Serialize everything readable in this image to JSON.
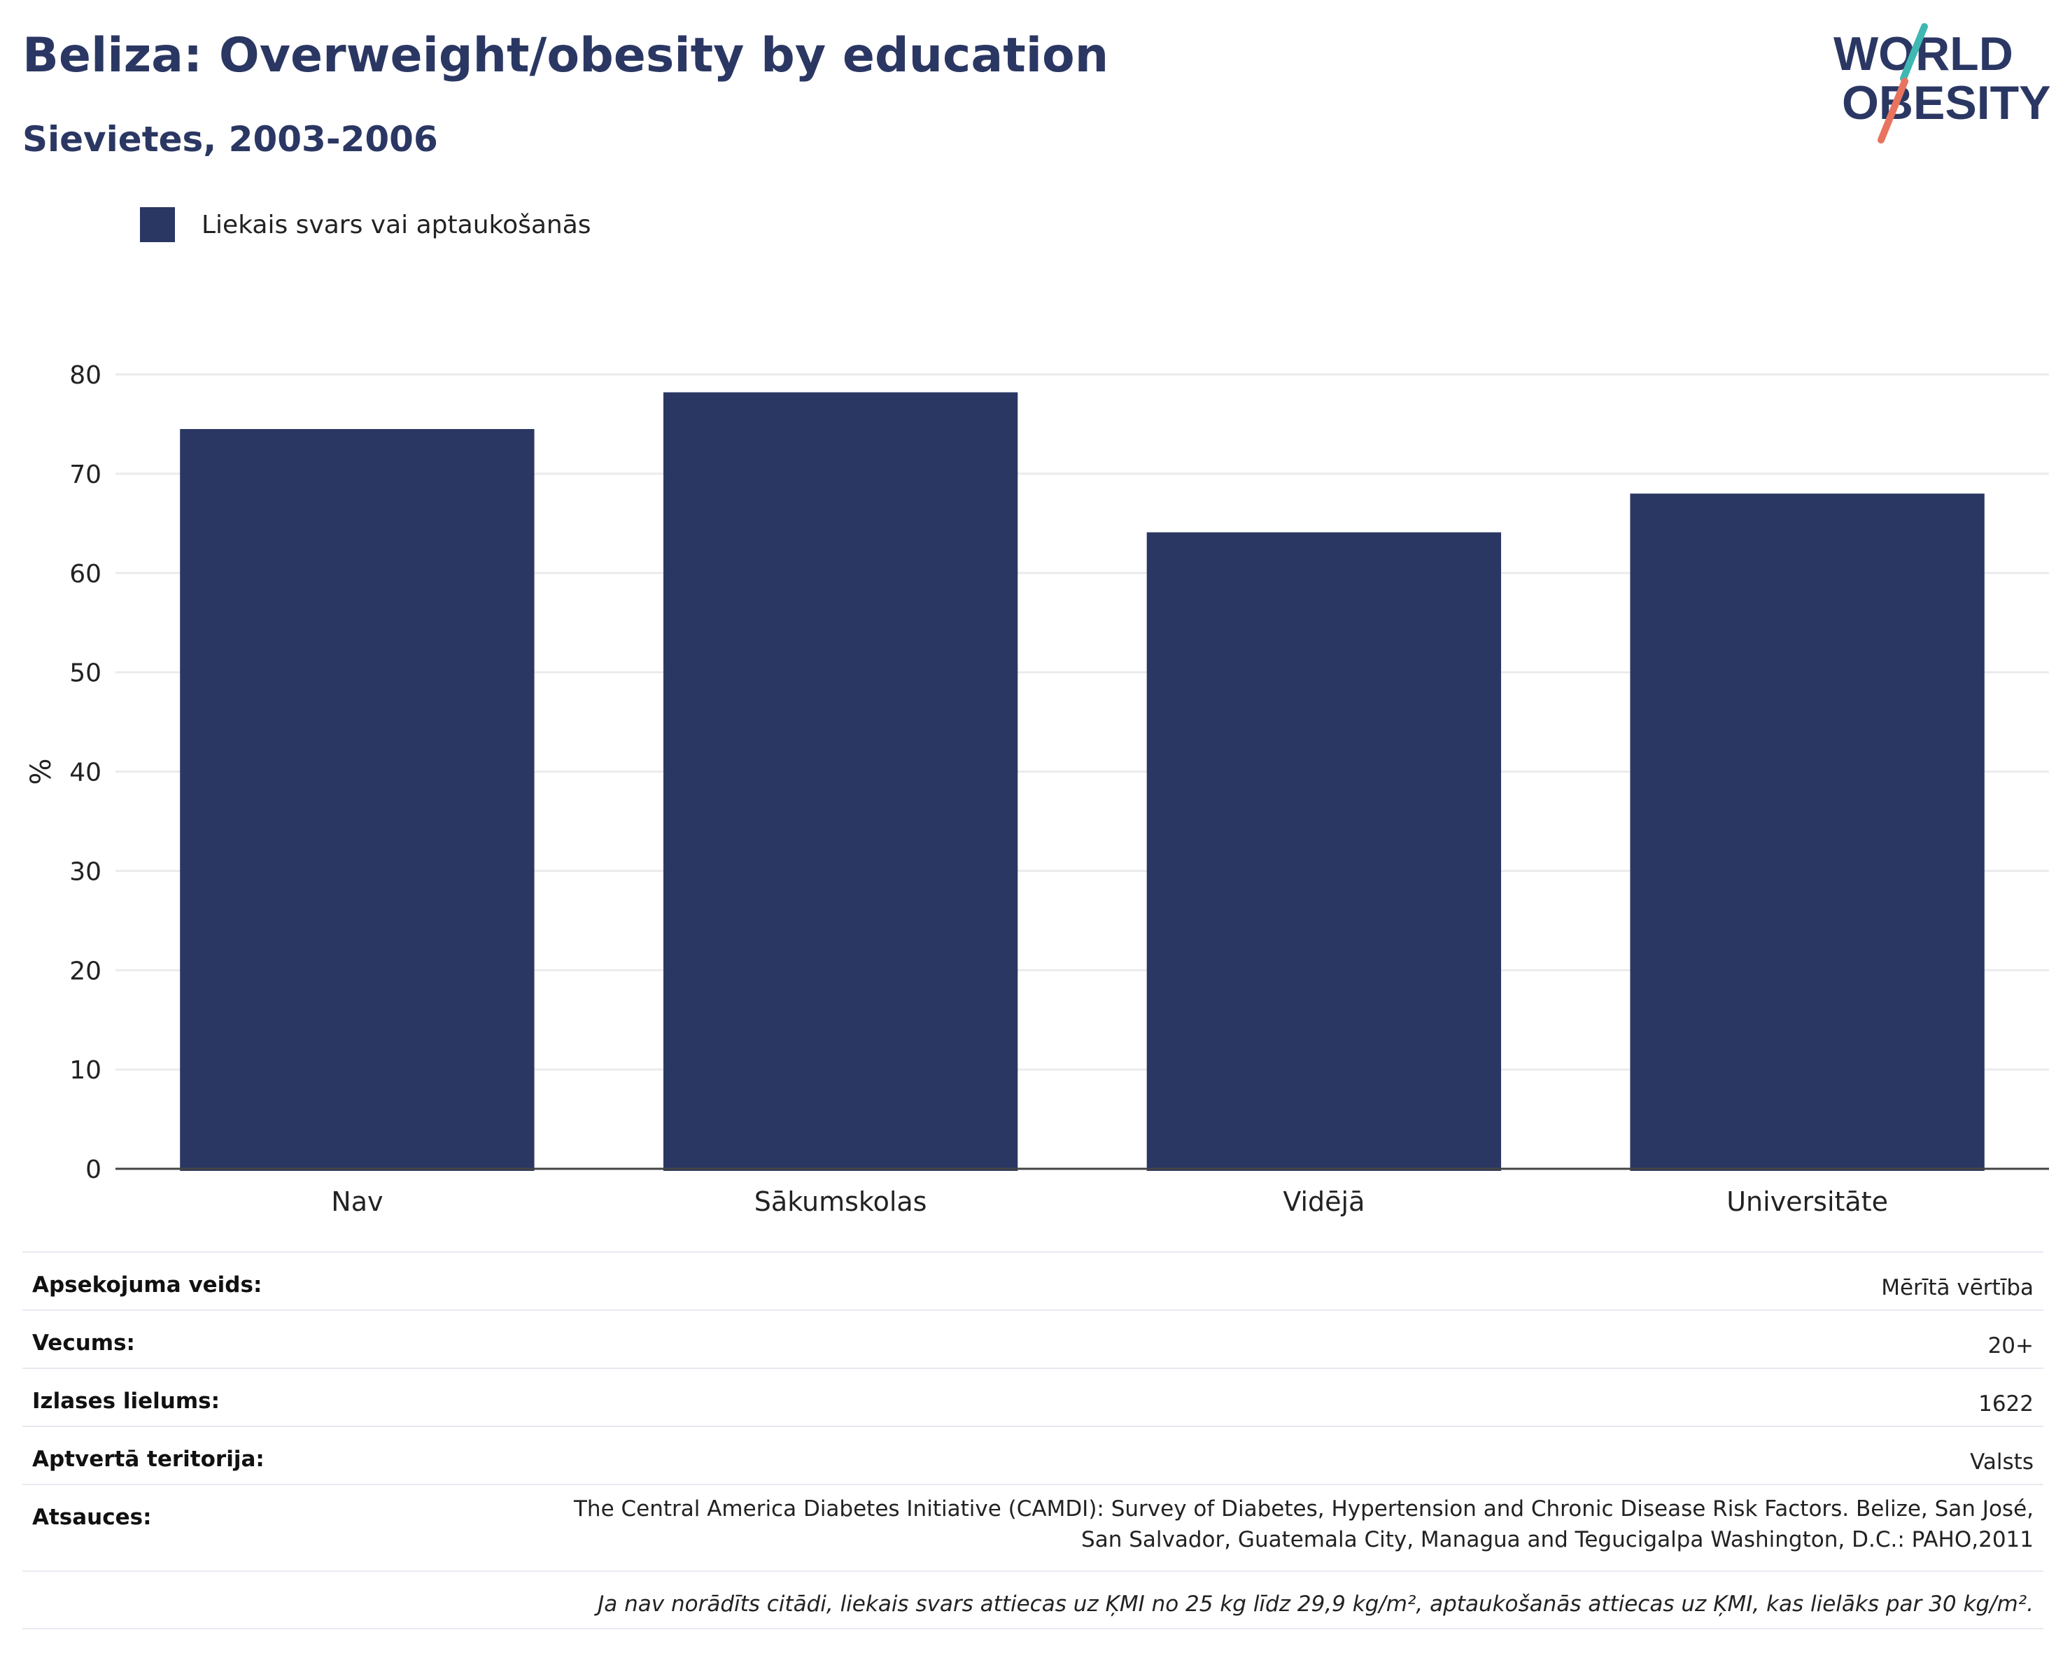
{
  "header": {
    "title": "Beliza: Overweight/obesity by education",
    "subtitle": "Sievietes, 2003-2006"
  },
  "logo": {
    "line1": "WORLD",
    "line2": "OBESITY"
  },
  "colors": {
    "bar": "#2b3763",
    "title": "#2b3763",
    "logo_teal": "#3fb8b3",
    "logo_coral": "#e8735f"
  },
  "chart_data": {
    "type": "bar",
    "categories": [
      "Nav",
      "Sākumskolas",
      "Vidējā",
      "Universitāte"
    ],
    "series": [
      {
        "name": "Liekais svars vai aptaukošanās",
        "values": [
          74.5,
          78.2,
          64.1,
          68.0
        ]
      }
    ],
    "ylabel": "%",
    "ylim": [
      0,
      80
    ],
    "yticks": [
      0,
      10,
      20,
      30,
      40,
      50,
      60,
      70,
      80
    ],
    "grid": true,
    "legend": "top-left"
  },
  "info": {
    "survey_type": {
      "label": "Apsekojuma veids:",
      "value": "Mērītā vērtība"
    },
    "age": {
      "label": "Vecums:",
      "value": "20+"
    },
    "sample": {
      "label": "Izlases lielums:",
      "value": "1622"
    },
    "coverage": {
      "label": "Aptvertā teritorija:",
      "value": "Valsts"
    },
    "references": {
      "label": "Atsauces:",
      "line1": "The Central America Diabetes Initiative (CAMDI): Survey of Diabetes, Hypertension and Chronic Disease Risk Factors. Belize, San José,",
      "line2": "San Salvador, Guatemala City, Managua and Tegucigalpa Washington, D.C.: PAHO,2011"
    },
    "note": "Ja nav norādīts citādi, liekais svars attiecas uz ĶMI no 25 kg līdz 29,9 kg/m², aptaukošanās attiecas uz ĶMI, kas lielāks par 30 kg/m²."
  }
}
